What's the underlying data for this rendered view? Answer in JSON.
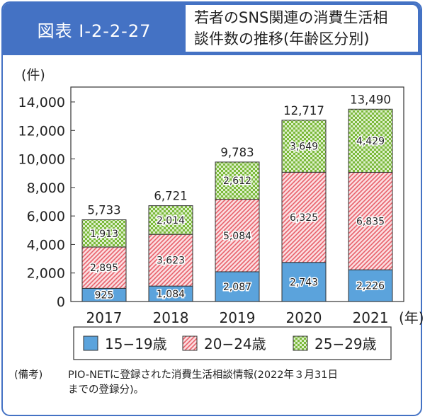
{
  "figure_label": "図表 I-2-2-27",
  "title_lines": [
    "若者のSNS関連の消費生活相",
    "談件数の推移(年齢区分別)"
  ],
  "chart_data": {
    "type": "bar",
    "stacked": true,
    "categories": [
      "2017",
      "2018",
      "2019",
      "2020",
      "2021"
    ],
    "x_unit": "(年)",
    "ylabel": "(件)",
    "ylim": [
      0,
      14000
    ],
    "yticks": [
      "0",
      "2,000",
      "4,000",
      "6,000",
      "8,000",
      "10,000",
      "12,000",
      "14,000"
    ],
    "series": [
      {
        "name": "15−19歳",
        "values": [
          925,
          1084,
          2087,
          2743,
          2226
        ],
        "labels": [
          "925",
          "1,084",
          "2,087",
          "2,743",
          "2,226"
        ],
        "color": "#5ba3dc",
        "pattern": "solid"
      },
      {
        "name": "20−24歳",
        "values": [
          2895,
          3623,
          5084,
          6325,
          6835
        ],
        "labels": [
          "2,895",
          "3,623",
          "5,084",
          "6,325",
          "6,835"
        ],
        "color": "#e8616b",
        "pattern": "diagonal"
      },
      {
        "name": "25−29歳",
        "values": [
          1913,
          2014,
          2612,
          3649,
          4429
        ],
        "labels": [
          "1,913",
          "2,014",
          "2,612",
          "3,649",
          "4,429"
        ],
        "color": "#7cb93c",
        "pattern": "checker"
      }
    ],
    "totals": [
      5733,
      6721,
      9783,
      12717,
      13490
    ],
    "total_labels": [
      "5,733",
      "6,721",
      "9,783",
      "12,717",
      "13,490"
    ],
    "legend_position": "bottom",
    "grid": false
  },
  "note_head": "(備考)",
  "note_lines": [
    "PIO-NETに登録された消費生活相談情報(2022年３月31日",
    "までの登録分)。"
  ]
}
